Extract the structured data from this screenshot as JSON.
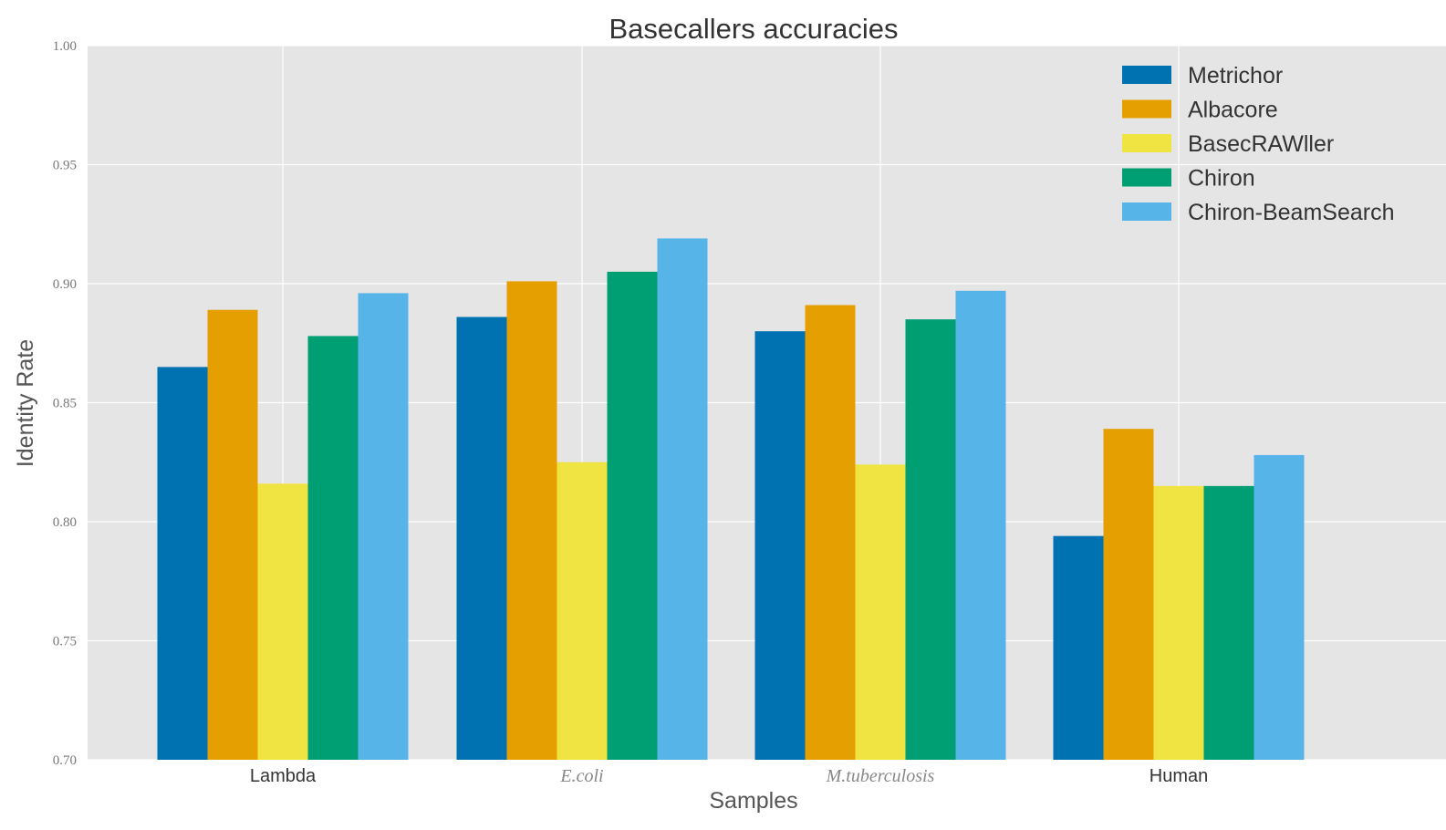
{
  "chart_data": {
    "type": "bar",
    "title": "Basecallers accuracies",
    "xlabel": "Samples",
    "ylabel": "Identity Rate",
    "categories": [
      "Lambda",
      "E.coli",
      "M.tuberculosis",
      "Human"
    ],
    "category_italic": [
      false,
      true,
      true,
      false
    ],
    "ylim": [
      0.7,
      1.0
    ],
    "yticks": [
      "0.70",
      "0.75",
      "0.80",
      "0.85",
      "0.90",
      "0.95",
      "1.00"
    ],
    "grid": true,
    "legend_position": "top-right",
    "background_color": "#e5e5e5",
    "series": [
      {
        "name": "Metrichor",
        "color": "#0072b2",
        "values": [
          0.865,
          0.886,
          0.88,
          0.794
        ]
      },
      {
        "name": "Albacore",
        "color": "#e69f00",
        "values": [
          0.889,
          0.901,
          0.891,
          0.839
        ]
      },
      {
        "name": "BasecRAWller",
        "color": "#f0e442",
        "values": [
          0.816,
          0.825,
          0.824,
          0.815
        ]
      },
      {
        "name": "Chiron",
        "color": "#009e73",
        "values": [
          0.878,
          0.905,
          0.885,
          0.815
        ]
      },
      {
        "name": "Chiron-BeamSearch",
        "color": "#56b4e9",
        "values": [
          0.896,
          0.919,
          0.897,
          0.828
        ]
      }
    ]
  }
}
